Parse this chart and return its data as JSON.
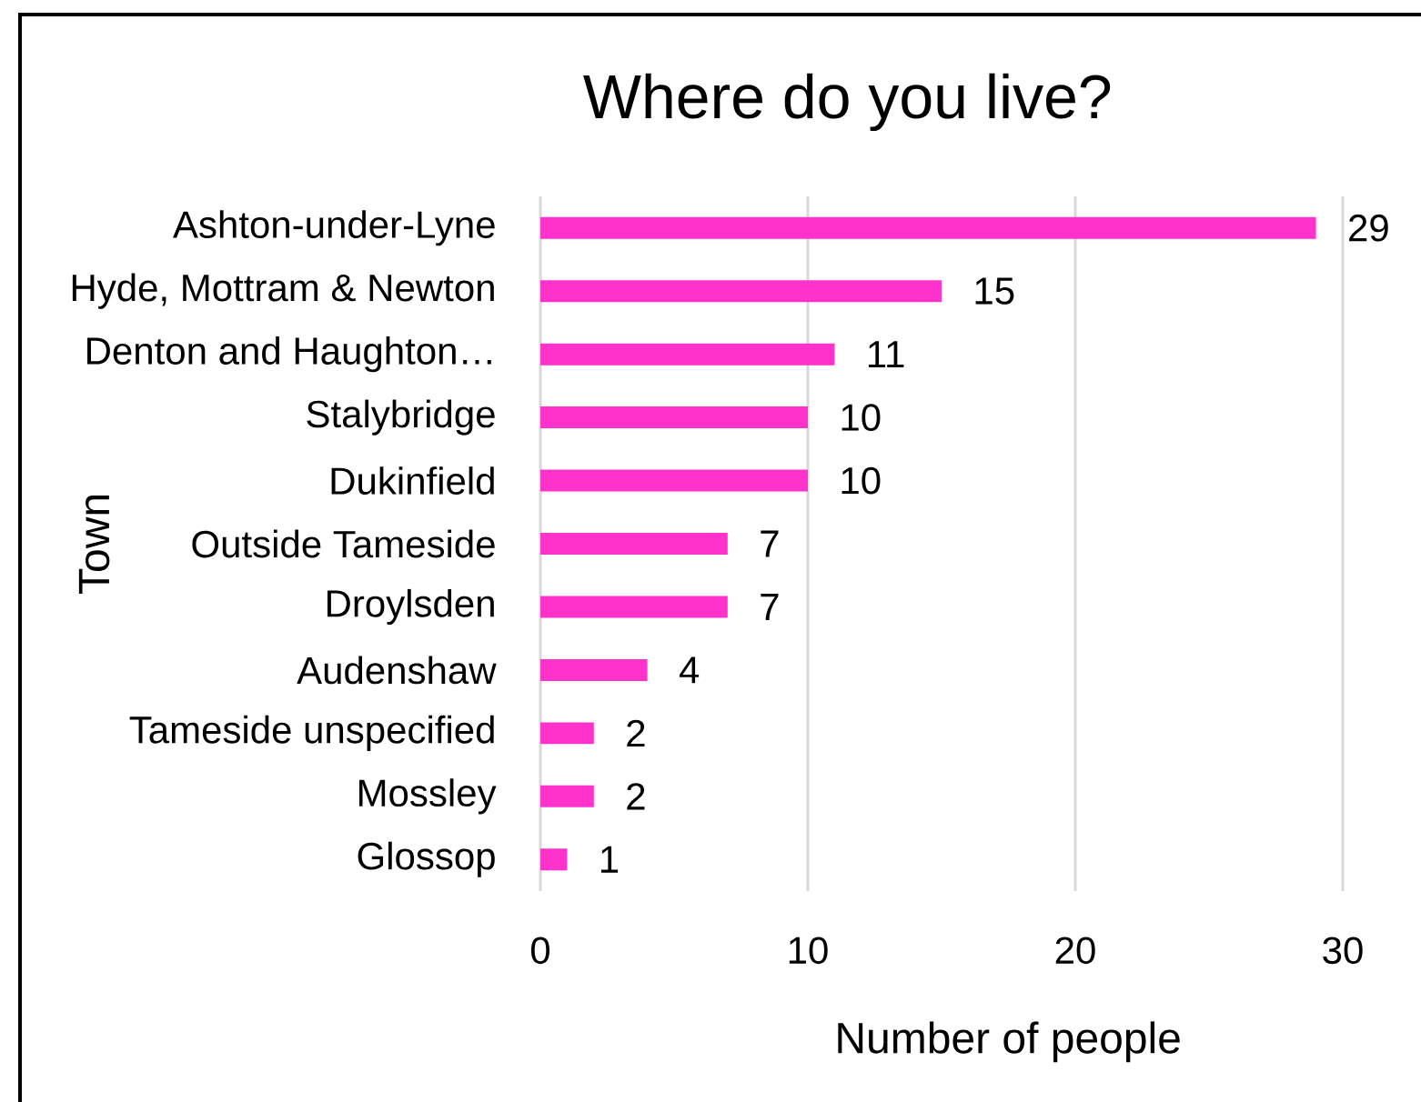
{
  "chart_data": {
    "type": "bar",
    "orientation": "horizontal",
    "title": "Where do you live?",
    "xlabel": "Number of people",
    "ylabel": "Town",
    "categories": [
      "Ashton-under-Lyne",
      "Hyde, Mottram & Newton",
      "Denton and Haughton…",
      "Stalybridge",
      "Dukinfield",
      "Outside Tameside",
      "Droylsden",
      "Audenshaw",
      "Tameside unspecified",
      "Mossley",
      "Glossop"
    ],
    "values": [
      29,
      15,
      11,
      10,
      10,
      7,
      7,
      4,
      2,
      2,
      1
    ],
    "color": "#ff33cc",
    "xlim": [
      0,
      30
    ],
    "xticks": [
      0,
      10,
      20,
      30
    ],
    "grid": "x",
    "data_labels": true
  }
}
